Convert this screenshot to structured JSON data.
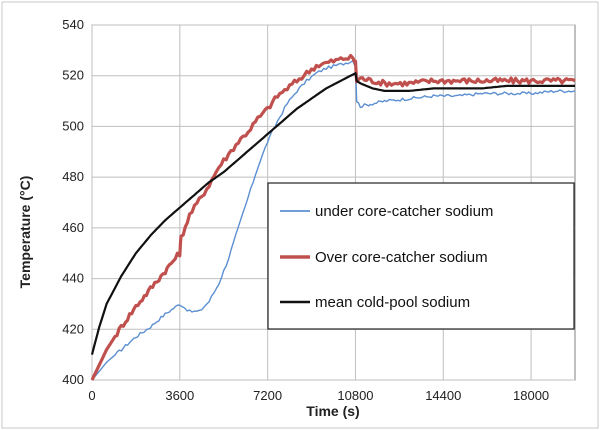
{
  "chart_data": {
    "type": "line",
    "xlabel": "Time (s)",
    "ylabel": "Temperature (°C)",
    "xlim": [
      0,
      19800
    ],
    "ylim": [
      400,
      540
    ],
    "xticks": [
      0,
      3600,
      7200,
      10800,
      14400,
      18000
    ],
    "yticks": [
      400,
      420,
      440,
      460,
      480,
      500,
      520,
      540
    ],
    "grid": true,
    "legend_position": "center-right",
    "series": [
      {
        "name": "under core-catcher sodium",
        "color": "#5b8fd1",
        "x": [
          0,
          600,
          1200,
          1800,
          2400,
          3000,
          3600,
          4000,
          4400,
          4800,
          5200,
          5600,
          6000,
          6400,
          6800,
          7200,
          7600,
          8000,
          8400,
          8800,
          9200,
          9600,
          10000,
          10400,
          10700,
          10800,
          10850,
          11000,
          11500,
          12000,
          13000,
          14000,
          15000,
          16000,
          17000,
          18000,
          19000,
          19800
        ],
        "y": [
          400,
          407,
          412,
          417,
          421,
          426,
          430,
          427,
          427,
          431,
          438,
          448,
          460,
          472,
          484,
          494,
          502,
          509,
          514,
          518,
          521,
          523,
          524,
          525,
          526,
          524,
          510,
          508,
          509,
          510,
          511,
          512,
          512,
          513,
          513,
          513,
          514,
          514
        ]
      },
      {
        "name": "Over core-catcher sodium",
        "color": "#c0504d",
        "x": [
          0,
          600,
          1200,
          1800,
          2400,
          3000,
          3500,
          3600,
          3650,
          4000,
          4400,
          4800,
          5200,
          5600,
          6000,
          6400,
          6800,
          7200,
          7600,
          8000,
          8400,
          8800,
          9200,
          9600,
          10000,
          10400,
          10700,
          10800,
          10850,
          11000,
          11500,
          12000,
          13000,
          14000,
          15000,
          16000,
          17000,
          18000,
          19000,
          19800
        ],
        "y": [
          400,
          412,
          421,
          429,
          436,
          443,
          449,
          450,
          456,
          465,
          471,
          477,
          484,
          489,
          494,
          498,
          503,
          507,
          512,
          515,
          518,
          521,
          524,
          525,
          526,
          527,
          527,
          525,
          518,
          519,
          518,
          517,
          517,
          518,
          518,
          518,
          518,
          518,
          518,
          518
        ]
      },
      {
        "name": "mean cold-pool sodium",
        "color": "#111111",
        "x": [
          0,
          300,
          600,
          1200,
          1800,
          2400,
          3000,
          3600,
          4200,
          4800,
          5400,
          6000,
          6600,
          7200,
          7800,
          8400,
          9000,
          9600,
          10200,
          10800,
          10850,
          11000,
          11500,
          12000,
          13000,
          14000,
          15000,
          16000,
          17000,
          18000,
          19000,
          19800
        ],
        "y": [
          410,
          421,
          430,
          441,
          450,
          457,
          463,
          468,
          473,
          478,
          482,
          487,
          492,
          497,
          502,
          507,
          511,
          515,
          518,
          521,
          518,
          517,
          515,
          514,
          514,
          515,
          515,
          515,
          516,
          516,
          516,
          516
        ]
      }
    ]
  }
}
